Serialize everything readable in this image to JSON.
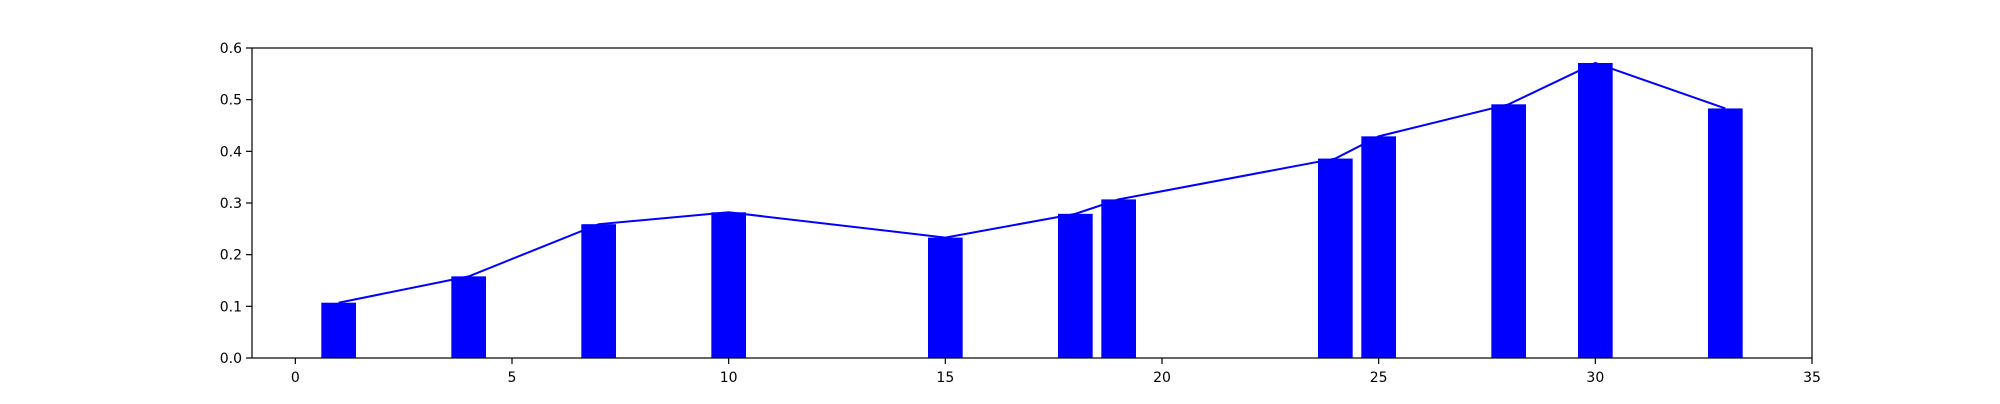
{
  "chart_data": {
    "type": "bar",
    "title": "",
    "xlabel": "",
    "ylabel": "",
    "xlim": [
      -1,
      35
    ],
    "ylim": [
      0,
      0.6
    ],
    "x_ticks": [
      0,
      5,
      10,
      15,
      20,
      25,
      30,
      35
    ],
    "y_ticks": [
      0.0,
      0.1,
      0.2,
      0.3,
      0.4,
      0.5,
      0.6
    ],
    "x_tick_labels": [
      "0",
      "5",
      "10",
      "15",
      "20",
      "25",
      "30",
      "35"
    ],
    "y_tick_labels": [
      "0.0",
      "0.1",
      "0.2",
      "0.3",
      "0.4",
      "0.5",
      "0.6"
    ],
    "grid": false,
    "legend": "none",
    "bar_color": "#0000ff",
    "line_color": "#0000ff",
    "series": [
      {
        "type": "bar",
        "x": [
          1,
          4,
          7,
          10,
          15,
          18,
          19,
          24,
          25,
          28,
          30,
          33
        ],
        "values": [
          0.107,
          0.158,
          0.259,
          0.282,
          0.233,
          0.279,
          0.307,
          0.386,
          0.429,
          0.491,
          0.571,
          0.483
        ]
      },
      {
        "type": "line",
        "x": [
          1,
          4,
          7,
          10,
          15,
          18,
          19,
          24,
          25,
          28,
          30,
          33
        ],
        "values": [
          0.107,
          0.158,
          0.259,
          0.282,
          0.233,
          0.279,
          0.307,
          0.386,
          0.429,
          0.491,
          0.571,
          0.483
        ]
      }
    ]
  }
}
